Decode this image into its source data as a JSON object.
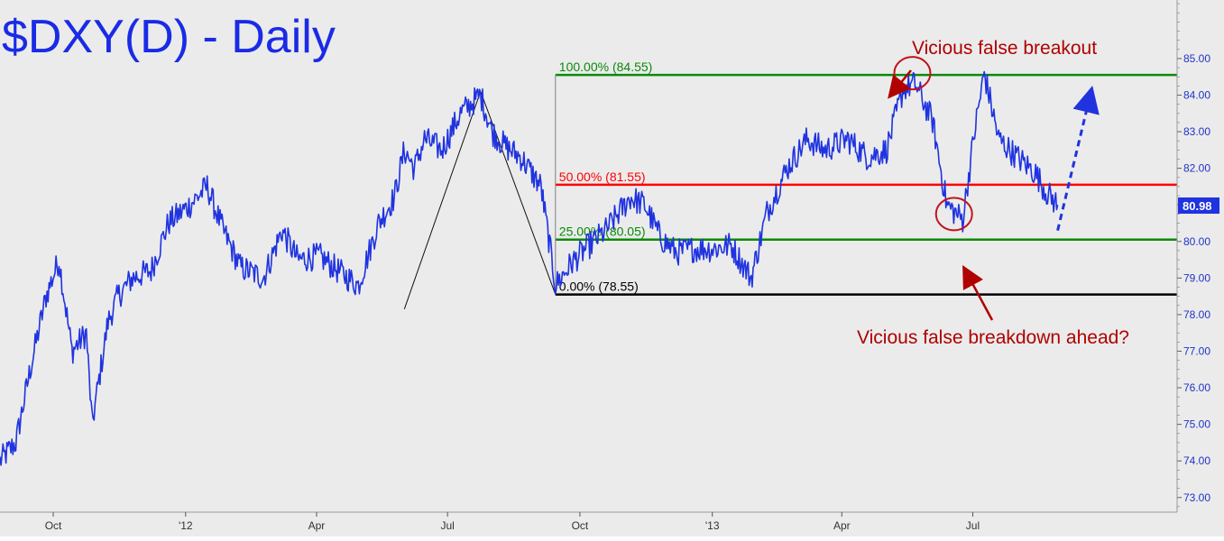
{
  "chart_data": {
    "type": "line",
    "title": "$DXY(D) - Daily",
    "colors": {
      "background": "#ebebeb",
      "price_line": "#1f33e0",
      "title": "#1a2be6",
      "fib_green": "#0a8a0a",
      "fib_red": "#ff0000",
      "fib_base": "#000000",
      "annotation": "#b00000",
      "axis_text": "#1f33c8",
      "last_price_bg": "#1f33e0"
    },
    "ylim": [
      72.6,
      86.6
    ],
    "xlim": [
      "2011-08-25",
      "2013-11-20"
    ],
    "grid": false,
    "y_ticks": [
      "73.00",
      "74.00",
      "75.00",
      "76.00",
      "77.00",
      "78.00",
      "79.00",
      "80.00",
      "81.00",
      "82.00",
      "83.00",
      "84.00",
      "85.00"
    ],
    "x_ticks": [
      {
        "label": "Oct",
        "date": "2011-10-01"
      },
      {
        "label": "'12",
        "date": "2012-01-01"
      },
      {
        "label": "Apr",
        "date": "2012-04-01"
      },
      {
        "label": "Jul",
        "date": "2012-07-01"
      },
      {
        "label": "Oct",
        "date": "2012-10-01"
      },
      {
        "label": "'13",
        "date": "2013-01-01"
      },
      {
        "label": "Apr",
        "date": "2013-04-01"
      },
      {
        "label": "Jul",
        "date": "2013-07-01"
      }
    ],
    "last_price": {
      "label": "80.98",
      "value": 80.98
    },
    "fib_levels": [
      {
        "label": "100.00% (84.55)",
        "value": 84.55,
        "color": "#0a8a0a"
      },
      {
        "label": "50.00% (81.55)",
        "value": 81.55,
        "color": "#ff0000"
      },
      {
        "label": "25.00% (80.05)",
        "value": 80.05,
        "color": "#0a8a0a"
      },
      {
        "label": "0.00% (78.55)",
        "value": 78.55,
        "color": "#000000"
      }
    ],
    "fib_anchor": {
      "date": "2012-09-14",
      "low": 78.55,
      "high": 84.55
    },
    "series": [
      {
        "x": [
          "2011-08-25",
          "2011-09-05",
          "2011-09-15",
          "2011-09-26",
          "2011-10-05",
          "2011-10-14",
          "2011-10-24",
          "2011-10-28",
          "2011-11-08",
          "2011-11-15",
          "2011-11-25",
          "2011-12-08",
          "2011-12-20",
          "2012-01-04",
          "2012-01-16",
          "2012-01-27",
          "2012-02-08",
          "2012-02-24",
          "2012-03-08",
          "2012-03-19",
          "2012-04-03",
          "2012-04-16",
          "2012-04-30",
          "2012-05-14",
          "2012-05-25",
          "2012-06-01",
          "2012-06-08",
          "2012-06-15",
          "2012-06-27",
          "2012-07-10",
          "2012-07-24",
          "2012-08-01",
          "2012-08-10",
          "2012-08-21",
          "2012-09-04",
          "2012-09-14",
          "2012-09-25",
          "2012-10-05",
          "2012-10-19",
          "2012-11-05",
          "2012-11-15",
          "2012-11-26",
          "2012-12-07",
          "2012-12-19",
          "2013-01-02",
          "2013-01-14",
          "2013-01-28",
          "2013-02-08",
          "2013-02-22",
          "2013-03-08",
          "2013-03-20",
          "2013-04-05",
          "2013-04-19",
          "2013-05-02",
          "2013-05-14",
          "2013-05-22",
          "2013-06-03",
          "2013-06-13",
          "2013-06-24",
          "2013-07-03",
          "2013-07-09",
          "2013-07-19",
          "2013-08-01",
          "2013-08-13",
          "2013-08-22",
          "2013-08-29"
        ],
        "values": [
          74.0,
          74.5,
          76.5,
          78.5,
          79.5,
          77.0,
          77.5,
          75.0,
          77.8,
          78.5,
          79.0,
          79.2,
          80.5,
          81.0,
          81.5,
          80.3,
          79.3,
          79.0,
          80.3,
          79.5,
          79.6,
          79.2,
          78.8,
          80.5,
          81.2,
          82.5,
          82.0,
          82.8,
          82.5,
          83.5,
          84.0,
          83.0,
          82.6,
          82.3,
          81.5,
          78.8,
          79.4,
          79.8,
          80.3,
          81.2,
          81.0,
          80.1,
          79.7,
          79.8,
          79.8,
          79.9,
          79.0,
          80.8,
          82.0,
          82.8,
          82.5,
          82.8,
          82.3,
          82.5,
          84.2,
          84.3,
          83.3,
          81.0,
          80.6,
          83.2,
          84.6,
          82.8,
          82.3,
          81.9,
          81.3,
          81.0
        ],
        "color": "#1f33e0"
      }
    ],
    "annotations": [
      {
        "text": "Vicious false breakout",
        "color": "#b00000"
      },
      {
        "text": "Vicious false breakdown ahead?",
        "color": "#b00000"
      }
    ],
    "projection": {
      "from": {
        "date": "2013-08-29",
        "value": 80.3
      },
      "to": {
        "date": "2013-09-20",
        "value": 83.9
      },
      "color": "#1f33e0"
    },
    "circles": [
      {
        "date": "2013-05-20",
        "value": 84.6
      },
      {
        "date": "2013-06-18",
        "value": 80.75
      }
    ],
    "trend_lines": [
      {
        "from": {
          "date": "2012-06-01",
          "value": 78.15
        },
        "to": {
          "date": "2012-07-24",
          "value": 84.1
        }
      },
      {
        "from": {
          "date": "2012-07-24",
          "value": 84.1
        },
        "to": {
          "date": "2012-09-14",
          "value": 78.55
        }
      }
    ]
  }
}
